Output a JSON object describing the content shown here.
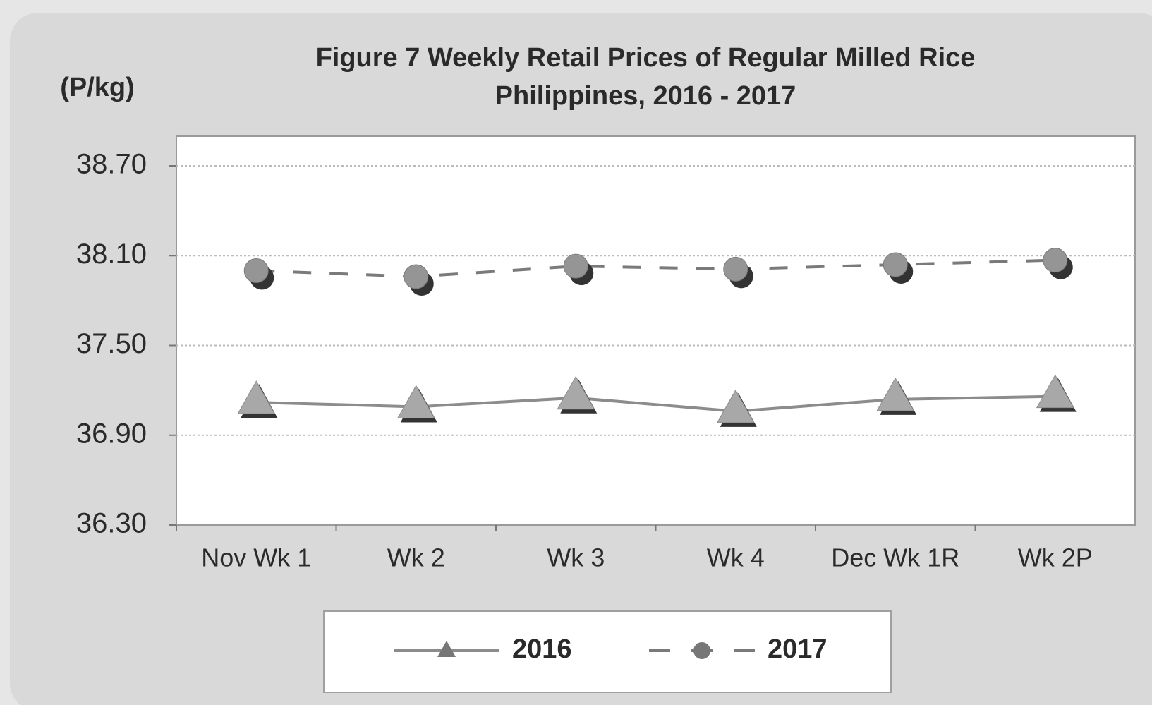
{
  "chart_data": {
    "type": "line",
    "title": "Figure 7  Weekly Retail Prices of Regular Milled Rice",
    "subtitle": "Philippines, 2016 - 2017",
    "y_label": "(P/kg)",
    "categories": [
      "Nov Wk 1",
      "Wk 2",
      "Wk 3",
      "Wk 4",
      "Dec Wk 1R",
      "Wk 2P"
    ],
    "series": [
      {
        "name": "2016",
        "color": "#8c8c8c",
        "line_style": "solid",
        "marker": "triangle",
        "values": [
          37.12,
          37.09,
          37.15,
          37.06,
          37.14,
          37.16
        ]
      },
      {
        "name": "2017",
        "color": "#7a7a7a",
        "line_style": "dashed",
        "marker": "circle",
        "values": [
          38.0,
          37.96,
          38.03,
          38.01,
          38.04,
          38.07
        ]
      }
    ],
    "ylim": [
      36.3,
      38.7
    ],
    "yticks": [
      {
        "value": 36.3,
        "label": "36.30"
      },
      {
        "value": 36.9,
        "label": "36.90"
      },
      {
        "value": 37.5,
        "label": "37.50"
      },
      {
        "value": 38.1,
        "label": "38.10"
      },
      {
        "value": 38.7,
        "label": "38.70"
      }
    ],
    "grid": true,
    "legend": "bottom"
  }
}
